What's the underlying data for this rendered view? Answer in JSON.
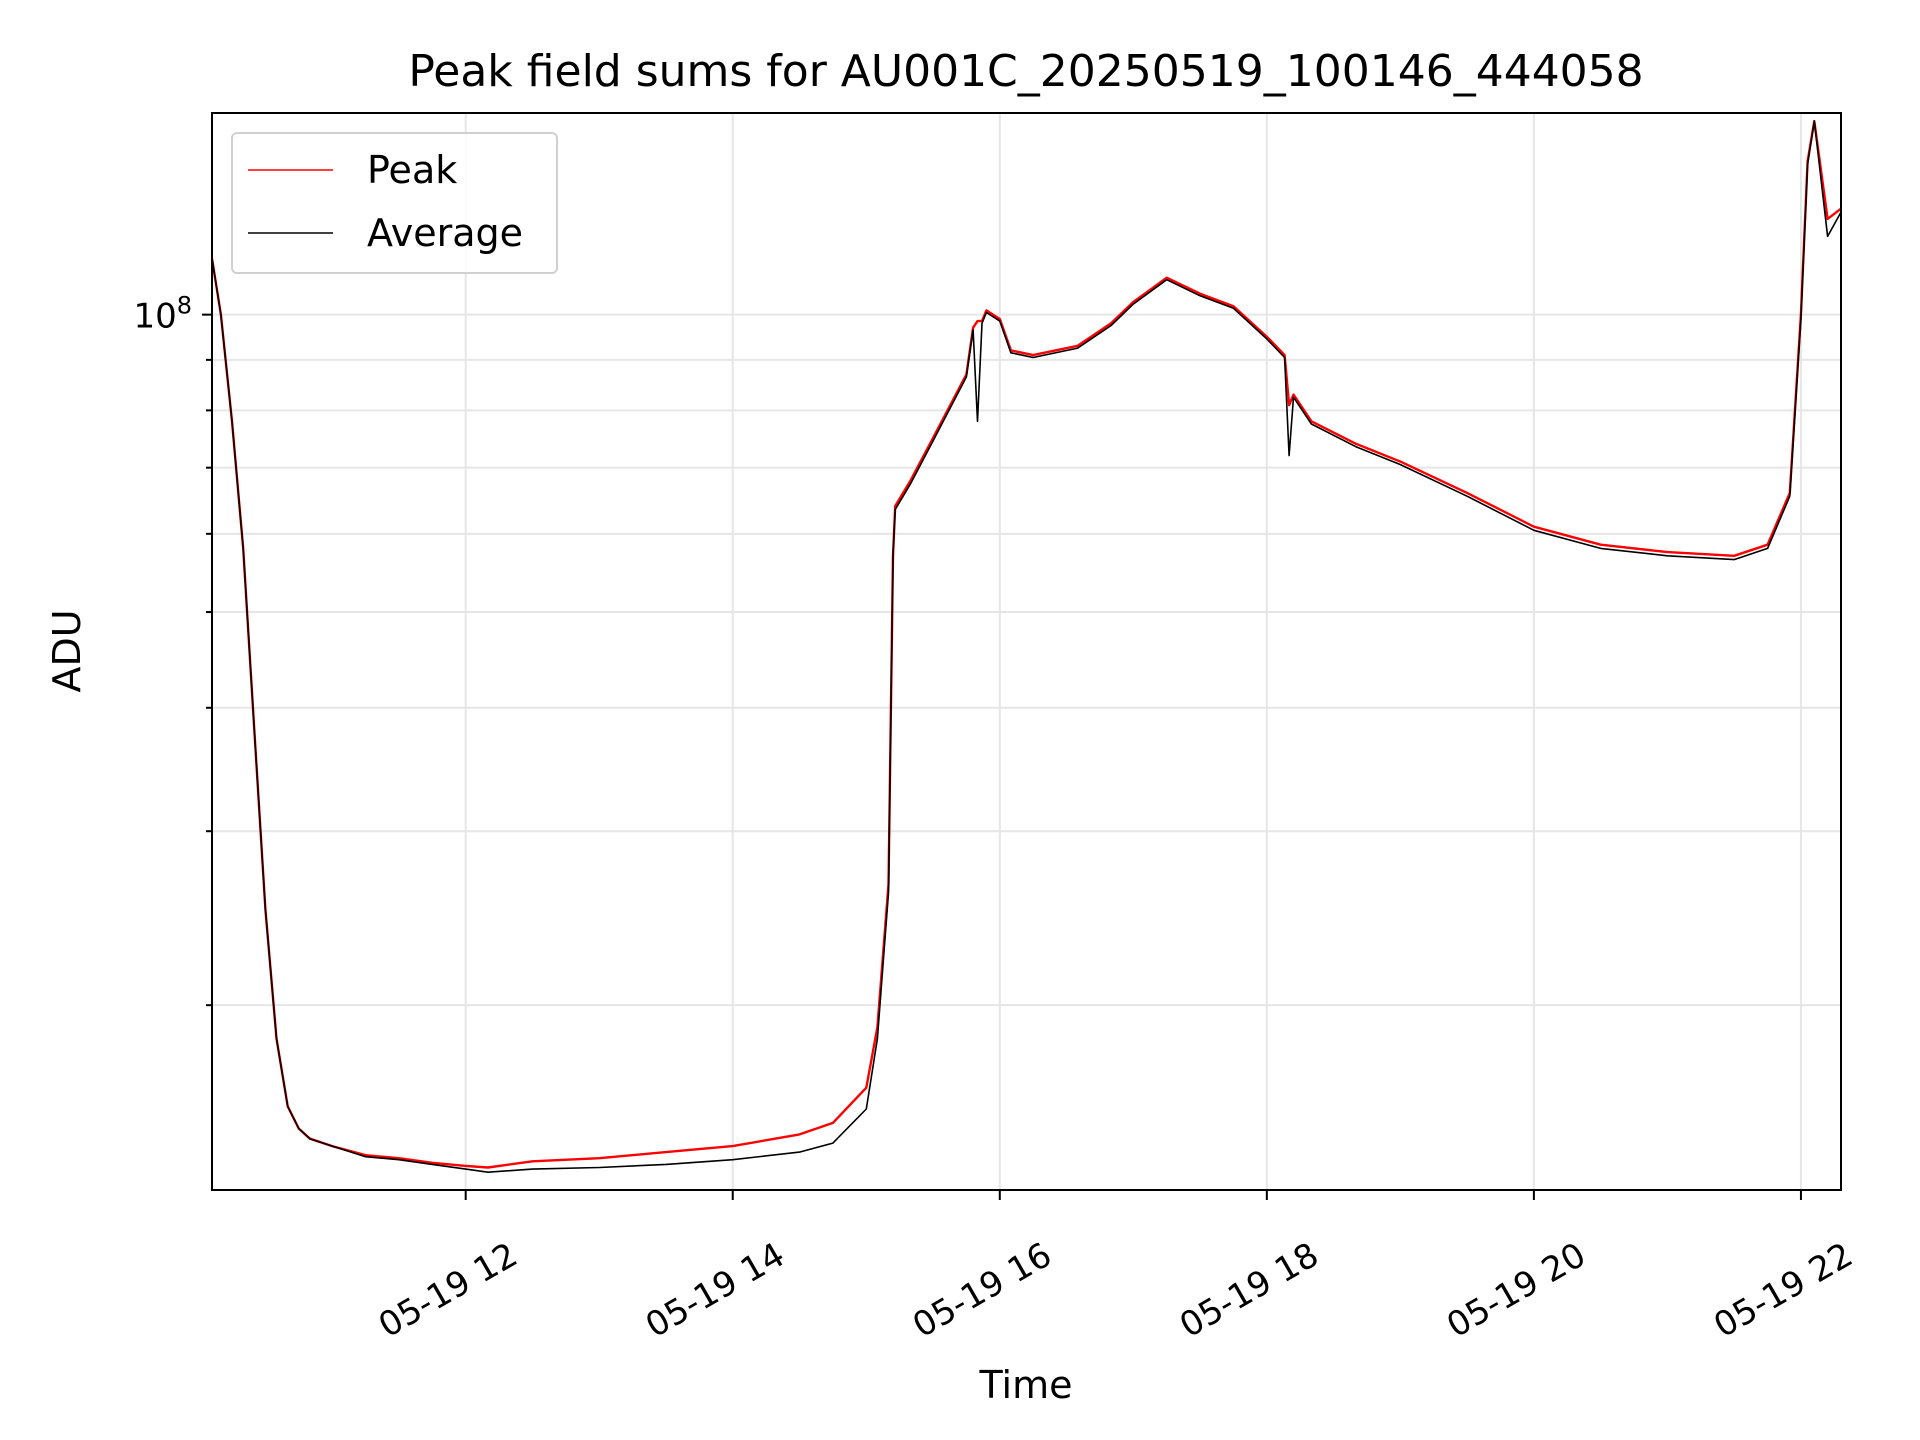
{
  "chart_data": {
    "type": "line",
    "title": "Peak field sums for AU001C_20250519_100146_444058",
    "xlabel": "Time",
    "ylabel": "ADU",
    "x_ticks": [
      "05-19 12",
      "05-19 14",
      "05-19 16",
      "05-19 18",
      "05-19 20",
      "05-19 22"
    ],
    "y_tick_label": {
      "base": "10",
      "exp": "8"
    },
    "y_scale": "log",
    "xlim": [
      "05-19 10:06",
      "05-19 22:18"
    ],
    "ylim": [
      13000000,
      160000000
    ],
    "grid": true,
    "legend_position": "upper left",
    "series": [
      {
        "name": "Peak",
        "color": "#ff0000",
        "x": [
          "05-19 10:06",
          "05-19 10:10",
          "05-19 10:15",
          "05-19 10:20",
          "05-19 10:25",
          "05-19 10:30",
          "05-19 10:35",
          "05-19 10:40",
          "05-19 10:45",
          "05-19 10:50",
          "05-19 11:00",
          "05-19 11:15",
          "05-19 11:30",
          "05-19 11:45",
          "05-19 12:00",
          "05-19 12:10",
          "05-19 12:30",
          "05-19 13:00",
          "05-19 13:30",
          "05-19 14:00",
          "05-19 14:30",
          "05-19 14:45",
          "05-19 15:00",
          "05-19 15:05",
          "05-19 15:10",
          "05-19 15:12",
          "05-19 15:13",
          "05-19 15:20",
          "05-19 15:30",
          "05-19 15:45",
          "05-19 15:48",
          "05-19 15:50",
          "05-19 15:52",
          "05-19 15:54",
          "05-19 16:00",
          "05-19 16:05",
          "05-19 16:15",
          "05-19 16:35",
          "05-19 16:50",
          "05-19 17:00",
          "05-19 17:15",
          "05-19 17:30",
          "05-19 17:45",
          "05-19 18:00",
          "05-19 18:08",
          "05-19 18:10",
          "05-19 18:12",
          "05-19 18:20",
          "05-19 18:40",
          "05-19 19:00",
          "05-19 19:30",
          "05-19 20:00",
          "05-19 20:30",
          "05-19 21:00",
          "05-19 21:30",
          "05-19 21:45",
          "05-19 21:55",
          "05-19 22:00",
          "05-19 22:03",
          "05-19 22:06",
          "05-19 22:12",
          "05-19 22:18"
        ],
        "values": [
          114000000,
          100000000,
          78000000,
          58000000,
          38000000,
          25000000,
          18500000,
          15800000,
          15000000,
          14650000,
          14400000,
          14100000,
          14000000,
          13850000,
          13750000,
          13700000,
          13900000,
          14000000,
          14200000,
          14400000,
          14800000,
          15200000,
          16500000,
          19000000,
          26500000,
          57000000,
          64000000,
          68000000,
          75000000,
          87000000,
          97000000,
          98500000,
          98500000,
          101000000,
          99000000,
          92000000,
          91000000,
          93000000,
          98000000,
          103000000,
          109000000,
          105000000,
          102000000,
          95000000,
          91000000,
          81000000,
          83000000,
          78000000,
          74000000,
          71000000,
          66000000,
          61000000,
          58500000,
          57500000,
          57000000,
          58500000,
          66000000,
          100000000,
          143000000,
          157000000,
          125000000,
          128000000
        ]
      },
      {
        "name": "Average",
        "color": "#000000",
        "x": [
          "05-19 10:06",
          "05-19 10:10",
          "05-19 10:15",
          "05-19 10:20",
          "05-19 10:25",
          "05-19 10:30",
          "05-19 10:35",
          "05-19 10:40",
          "05-19 10:45",
          "05-19 10:50",
          "05-19 11:00",
          "05-19 11:15",
          "05-19 11:30",
          "05-19 11:45",
          "05-19 12:00",
          "05-19 12:10",
          "05-19 12:30",
          "05-19 13:00",
          "05-19 13:30",
          "05-19 14:00",
          "05-19 14:30",
          "05-19 14:45",
          "05-19 15:00",
          "05-19 15:05",
          "05-19 15:10",
          "05-19 15:12",
          "05-19 15:13",
          "05-19 15:20",
          "05-19 15:30",
          "05-19 15:45",
          "05-19 15:48",
          "05-19 15:50",
          "05-19 15:52",
          "05-19 15:54",
          "05-19 16:00",
          "05-19 16:05",
          "05-19 16:15",
          "05-19 16:35",
          "05-19 16:50",
          "05-19 17:00",
          "05-19 17:15",
          "05-19 17:30",
          "05-19 17:45",
          "05-19 18:00",
          "05-19 18:08",
          "05-19 18:10",
          "05-19 18:12",
          "05-19 18:20",
          "05-19 18:40",
          "05-19 19:00",
          "05-19 19:30",
          "05-19 20:00",
          "05-19 20:30",
          "05-19 21:00",
          "05-19 21:30",
          "05-19 21:45",
          "05-19 21:55",
          "05-19 22:00",
          "05-19 22:03",
          "05-19 22:06",
          "05-19 22:12",
          "05-19 22:18"
        ],
        "values": [
          114000000,
          100000000,
          78000000,
          58000000,
          38000000,
          25000000,
          18500000,
          15800000,
          15000000,
          14650000,
          14400000,
          14050000,
          13950000,
          13800000,
          13650000,
          13550000,
          13650000,
          13700000,
          13800000,
          13950000,
          14200000,
          14500000,
          15700000,
          18500000,
          26000000,
          57000000,
          63500000,
          67500000,
          74500000,
          86500000,
          96500000,
          78000000,
          98000000,
          100500000,
          98500000,
          91500000,
          90500000,
          92500000,
          97500000,
          102500000,
          108500000,
          104500000,
          101500000,
          94500000,
          90500000,
          72000000,
          82500000,
          77500000,
          73500000,
          70500000,
          65500000,
          60500000,
          58000000,
          57000000,
          56500000,
          58000000,
          65500000,
          99000000,
          142000000,
          157000000,
          120000000,
          127000000
        ]
      }
    ]
  }
}
